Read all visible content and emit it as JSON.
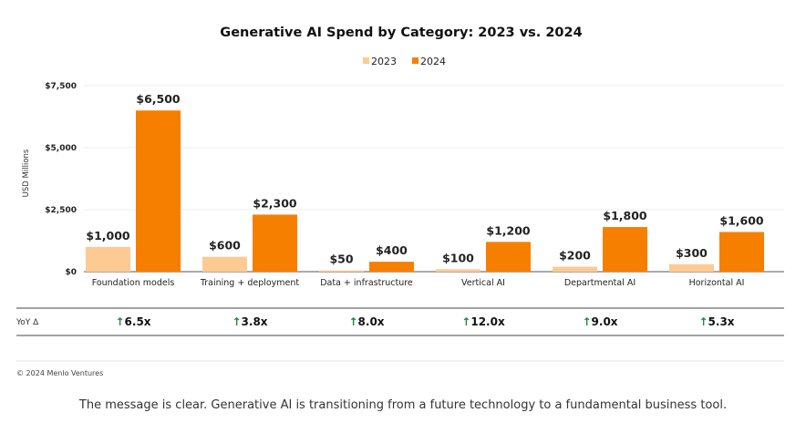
{
  "chart_data": {
    "type": "bar",
    "title": "Generative AI Spend by Category: 2023 vs. 2024",
    "ylabel": "USD Millions",
    "xlabel": "",
    "ylim": [
      0,
      7500
    ],
    "yticks": [
      0,
      2500,
      5000,
      7500
    ],
    "ytick_labels": [
      "$0",
      "$2,500",
      "$5,000",
      "$7,500"
    ],
    "grid": true,
    "legend_position": "top-center",
    "categories": [
      "Foundation models",
      "Training + deployment",
      "Data + infrastructure",
      "Vertical AI",
      "Departmental AI",
      "Horizontal AI"
    ],
    "series": [
      {
        "name": "2023",
        "color": "#fbcb93",
        "values": [
          1000,
          600,
          50,
          100,
          200,
          300
        ],
        "labels": [
          "$1,000",
          "$600",
          "$50",
          "$100",
          "$200",
          "$300"
        ]
      },
      {
        "name": "2024",
        "color": "#f77f00",
        "values": [
          6500,
          2300,
          400,
          1200,
          1800,
          1600
        ],
        "labels": [
          "$6,500",
          "$2,300",
          "$400",
          "$1,200",
          "$1,800",
          "$1,600"
        ]
      }
    ],
    "yoy": {
      "label": "YoY Δ",
      "arrow": "↑",
      "arrow_color": "#1a8a3a",
      "values": [
        "6.5x",
        "3.8x",
        "8.0x",
        "12.0x",
        "9.0x",
        "5.3x"
      ]
    }
  },
  "copyright": "© 2024 Menlo Ventures",
  "caption": "The message is clear. Generative AI is transitioning from a future technology to a fundamental business tool."
}
